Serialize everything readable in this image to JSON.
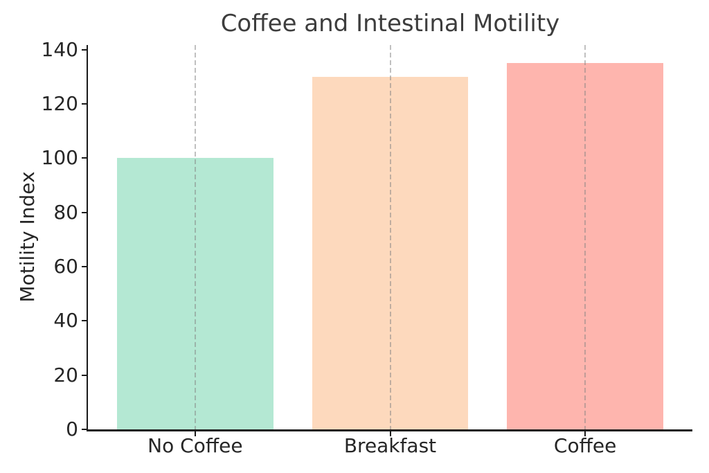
{
  "chart_data": {
    "type": "bar",
    "title": "Coffee and Intestinal Motility",
    "categories": [
      "No Coffee",
      "Breakfast",
      "Coffee"
    ],
    "values": [
      100,
      130,
      135
    ],
    "bar_colors": [
      "#b4e8d3",
      "#fdd9bd",
      "#feb5ae"
    ],
    "xlabel": "",
    "ylabel": "Motility Index",
    "ylim": [
      0,
      141.75
    ],
    "xlim": [
      -0.55,
      2.55
    ],
    "yticks": [
      0,
      20,
      40,
      60,
      80,
      100,
      120,
      140
    ],
    "bar_width": 0.8,
    "grid": "vertical-dashed-at-bar-centers",
    "legend_position": "none",
    "colors": {
      "title_text": "#3d3d3d",
      "tick_text": "#262626",
      "spine": "#1a1a1a",
      "gridline": "#bdbdbd",
      "background": "#ffffff"
    }
  }
}
